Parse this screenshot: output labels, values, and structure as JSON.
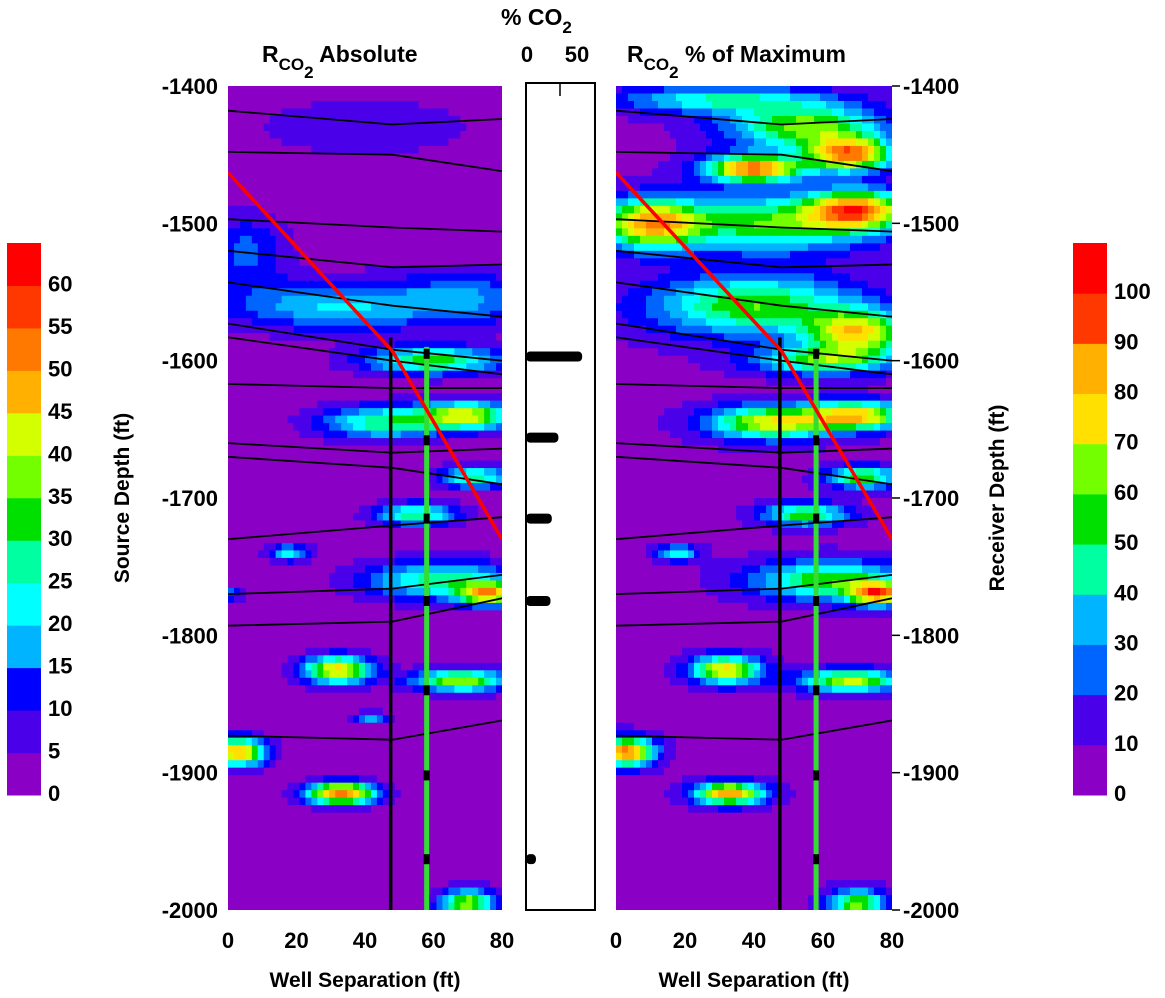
{
  "chart_data": [
    {
      "type": "heatmap",
      "panel": "left",
      "title": {
        "main": "R",
        "sub": "CO",
        "sub2": "2",
        "suffix": " Absolute"
      },
      "xlabel": "Well Separation (ft)",
      "ylabel": "Source Depth (ft)",
      "xlim": [
        0,
        80
      ],
      "ylim": [
        -2000,
        -1400
      ],
      "xticks": [
        "0",
        "20",
        "40",
        "60",
        "80"
      ],
      "yticks": [
        "-1400",
        "-1500",
        "-1600",
        "-1700",
        "-1800",
        "-1900",
        "-2000"
      ],
      "colorbar": {
        "levels": [
          "0",
          "5",
          "10",
          "15",
          "20",
          "25",
          "30",
          "35",
          "40",
          "45",
          "50",
          "55",
          "60"
        ],
        "max": 65
      }
    },
    {
      "type": "bar",
      "panel": "center",
      "title": {
        "main": "% CO",
        "sub": "2"
      },
      "xticks": [
        "0",
        "50"
      ],
      "xlim": [
        0,
        50
      ],
      "ylim": [
        -2000,
        -1400
      ],
      "bands": [
        {
          "depth": -1597,
          "value": 38
        },
        {
          "depth": -1656,
          "value": 20
        },
        {
          "depth": -1715,
          "value": 15
        },
        {
          "depth": -1775,
          "value": 14
        },
        {
          "depth": -1963,
          "value": 3
        }
      ]
    },
    {
      "type": "heatmap",
      "panel": "right",
      "title": {
        "main": "R",
        "sub": "CO",
        "sub2": "2",
        "suffix": " % of Maximum"
      },
      "xlabel": "Well Separation (ft)",
      "ylabel": "Receiver Depth (ft)",
      "xlim": [
        0,
        80
      ],
      "ylim": [
        -2000,
        -1400
      ],
      "xticks": [
        "0",
        "20",
        "40",
        "60",
        "80"
      ],
      "yticks": [
        "-1400",
        "-1500",
        "-1600",
        "-1700",
        "-1800",
        "-1900",
        "-2000"
      ],
      "colorbar": {
        "levels": [
          "0",
          "10",
          "20",
          "30",
          "40",
          "50",
          "60",
          "70",
          "80",
          "90",
          "100"
        ],
        "max": 105
      }
    }
  ],
  "overlays": {
    "horizons": [
      [
        [
          0,
          -1418
        ],
        [
          48,
          -1428
        ],
        [
          80,
          -1424
        ]
      ],
      [
        [
          0,
          -1448
        ],
        [
          48,
          -1450
        ],
        [
          80,
          -1462
        ]
      ],
      [
        [
          0,
          -1497
        ],
        [
          48,
          -1503
        ],
        [
          80,
          -1506
        ]
      ],
      [
        [
          0,
          -1520
        ],
        [
          48,
          -1532
        ],
        [
          80,
          -1530
        ]
      ],
      [
        [
          0,
          -1543
        ],
        [
          48,
          -1560
        ],
        [
          80,
          -1568
        ]
      ],
      [
        [
          0,
          -1573
        ],
        [
          48,
          -1592
        ],
        [
          80,
          -1600
        ]
      ],
      [
        [
          0,
          -1583
        ],
        [
          48,
          -1600
        ],
        [
          80,
          -1610
        ]
      ],
      [
        [
          0,
          -1617
        ],
        [
          48,
          -1620
        ],
        [
          80,
          -1620
        ]
      ],
      [
        [
          0,
          -1660
        ],
        [
          48,
          -1667
        ],
        [
          80,
          -1664
        ]
      ],
      [
        [
          0,
          -1670
        ],
        [
          48,
          -1678
        ],
        [
          80,
          -1690
        ]
      ],
      [
        [
          0,
          -1730
        ],
        [
          48,
          -1720
        ],
        [
          80,
          -1714
        ]
      ],
      [
        [
          0,
          -1770
        ],
        [
          48,
          -1766
        ],
        [
          80,
          -1756
        ]
      ],
      [
        [
          0,
          -1793
        ],
        [
          48,
          -1790
        ],
        [
          80,
          -1773
        ]
      ],
      [
        [
          0,
          -1873
        ],
        [
          48,
          -1876
        ],
        [
          80,
          -1862
        ]
      ]
    ],
    "fault_line": [
      [
        0,
        -1463
      ],
      [
        48,
        -1593
      ],
      [
        80,
        -1730
      ]
    ],
    "black_well_x": 47.5,
    "black_well_top": -1583,
    "green_well_x": 58,
    "green_well_top": -1590,
    "green_well_markers": [
      -1595,
      -1658,
      -1715,
      -1775,
      -1840,
      -1902,
      -1963
    ]
  },
  "colors": {
    "palette": [
      "#8a00c4",
      "#4a00e8",
      "#0000ff",
      "#0064ff",
      "#00b4ff",
      "#00ffff",
      "#00ffa0",
      "#00e000",
      "#74ff00",
      "#d4ff00",
      "#ffe000",
      "#ffb000",
      "#ff7800",
      "#ff3800",
      "#ff0000"
    ],
    "fault": "#ff0000",
    "green_well": "#33dd33"
  }
}
